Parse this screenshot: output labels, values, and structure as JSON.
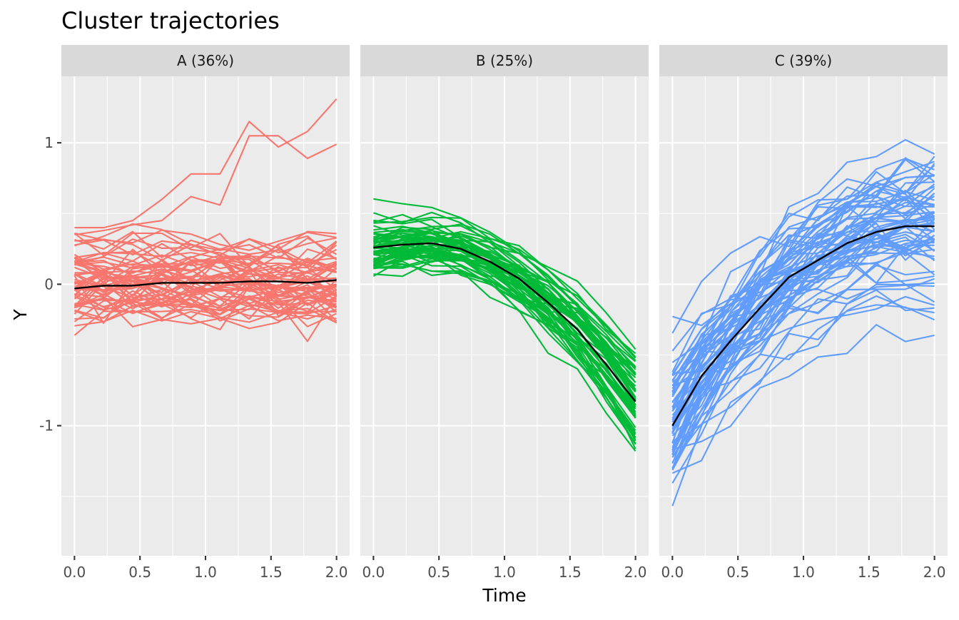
{
  "chart_data": {
    "type": "line",
    "title": "Cluster trajectories",
    "xlabel": "Time",
    "ylabel": "Y",
    "xlim": [
      -0.1,
      2.1
    ],
    "ylim": [
      -1.92,
      1.47
    ],
    "x_ticks": [
      0.0,
      0.5,
      1.0,
      1.5,
      2.0
    ],
    "x_tick_labels": [
      "0.0",
      "0.5",
      "1.0",
      "1.5",
      "2.0"
    ],
    "y_ticks": [
      -1,
      0,
      1
    ],
    "y_tick_labels": [
      "-1",
      "0",
      "1"
    ],
    "grid": true,
    "legend": "none",
    "x": [
      0.0,
      0.222,
      0.444,
      0.667,
      0.889,
      1.111,
      1.333,
      1.556,
      1.778,
      2.0
    ],
    "panels": [
      {
        "label": "A (36%)",
        "color": "#f8766d",
        "individual_count": 60,
        "mean_values": [
          -0.03,
          -0.01,
          -0.01,
          0.01,
          0.01,
          0.01,
          0.02,
          0.02,
          0.01,
          0.03
        ],
        "highlight_series": [
          [
            0.4,
            0.4,
            0.45,
            0.6,
            0.78,
            0.78,
            1.15,
            0.97,
            1.08,
            1.31
          ],
          [
            0.35,
            0.38,
            0.42,
            0.45,
            0.62,
            0.56,
            1.05,
            1.05,
            0.89,
            0.99
          ]
        ]
      },
      {
        "label": "B (25%)",
        "color": "#00ba38",
        "individual_count": 60,
        "mean_values": [
          0.26,
          0.28,
          0.29,
          0.25,
          0.16,
          0.04,
          -0.13,
          -0.32,
          -0.57,
          -0.83
        ]
      },
      {
        "label": "C (39%)",
        "color": "#619cff",
        "individual_count": 70,
        "mean_values": [
          -1.0,
          -0.65,
          -0.4,
          -0.17,
          0.05,
          0.17,
          0.29,
          0.37,
          0.41,
          0.41
        ]
      }
    ],
    "mean_line_color": "#000000"
  }
}
